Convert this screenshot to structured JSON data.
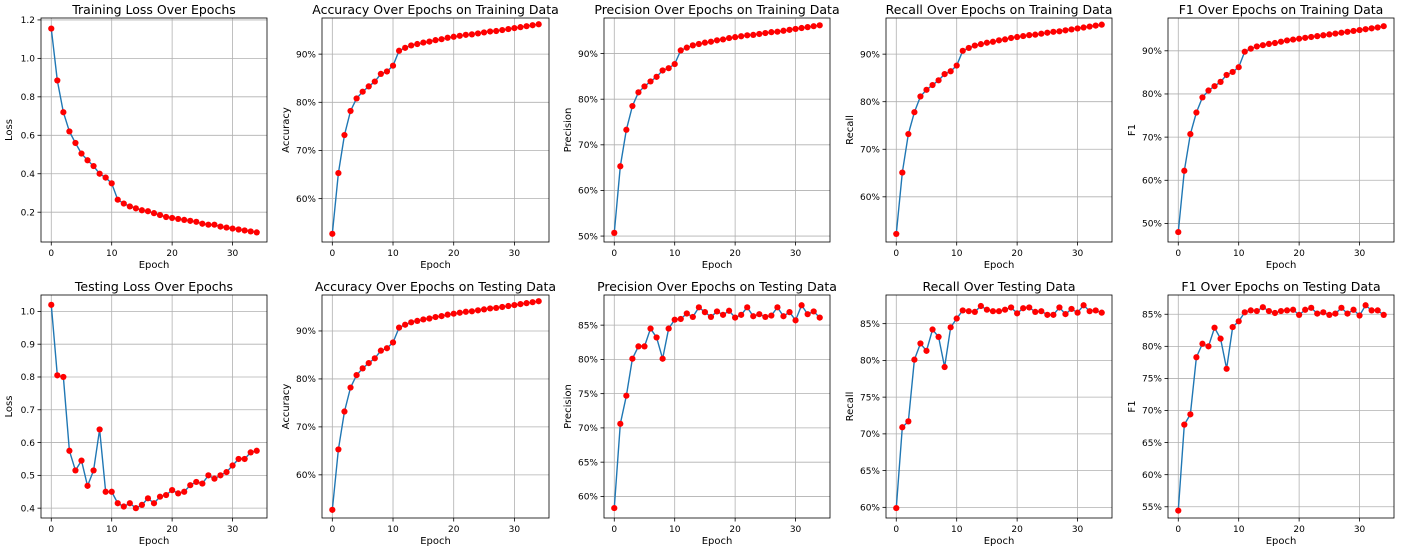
{
  "figure": {
    "background": "#ffffff"
  },
  "style": {
    "line_color": "#1f77b4",
    "marker_color": "#ff0000",
    "grid_color": "#b0b0b0",
    "grid": true
  },
  "chart_data": [
    {
      "type": "line",
      "title": "Training Loss Over Epochs",
      "xlabel": "Epoch",
      "ylabel": "Loss",
      "xlim": [
        -1.7,
        35.7
      ],
      "ylim": [
        0.045,
        1.21
      ],
      "xticks": [
        0,
        10,
        20,
        30
      ],
      "xtick_labels": [
        "0",
        "10",
        "20",
        "30"
      ],
      "yticks": [
        0.2,
        0.4,
        0.6,
        0.8,
        1.0,
        1.2
      ],
      "ytick_labels": [
        "0.2",
        "0.4",
        "0.6",
        "0.8",
        "1.0",
        "1.2"
      ],
      "x": [
        0,
        1,
        2,
        3,
        4,
        5,
        6,
        7,
        8,
        9,
        10,
        11,
        12,
        13,
        14,
        15,
        16,
        17,
        18,
        19,
        20,
        21,
        22,
        23,
        24,
        25,
        26,
        27,
        28,
        29,
        30,
        31,
        32,
        33,
        34
      ],
      "y": [
        1.155,
        0.885,
        0.72,
        0.62,
        0.56,
        0.505,
        0.47,
        0.44,
        0.4,
        0.38,
        0.35,
        0.265,
        0.245,
        0.23,
        0.22,
        0.21,
        0.205,
        0.195,
        0.185,
        0.175,
        0.17,
        0.165,
        0.16,
        0.155,
        0.15,
        0.14,
        0.135,
        0.135,
        0.125,
        0.12,
        0.115,
        0.11,
        0.105,
        0.1,
        0.095
      ]
    },
    {
      "type": "line",
      "title": "Accuracy Over Epochs on Training Data",
      "xlabel": "Epoch",
      "ylabel": "Accuracy",
      "xlim": [
        -1.7,
        35.7
      ],
      "ylim": [
        0.51,
        0.975
      ],
      "xticks": [
        0,
        10,
        20,
        30
      ],
      "xtick_labels": [
        "0",
        "10",
        "20",
        "30"
      ],
      "yticks": [
        0.6,
        0.7,
        0.8,
        0.9
      ],
      "ytick_labels": [
        "60%",
        "70%",
        "80%",
        "90%"
      ],
      "x": [
        0,
        1,
        2,
        3,
        4,
        5,
        6,
        7,
        8,
        9,
        10,
        11,
        12,
        13,
        14,
        15,
        16,
        17,
        18,
        19,
        20,
        21,
        22,
        23,
        24,
        25,
        26,
        27,
        28,
        29,
        30,
        31,
        32,
        33,
        34
      ],
      "y": [
        0.527,
        0.653,
        0.732,
        0.782,
        0.808,
        0.822,
        0.833,
        0.843,
        0.859,
        0.864,
        0.876,
        0.907,
        0.913,
        0.918,
        0.921,
        0.924,
        0.926,
        0.929,
        0.931,
        0.934,
        0.936,
        0.938,
        0.94,
        0.941,
        0.943,
        0.945,
        0.947,
        0.948,
        0.95,
        0.952,
        0.954,
        0.956,
        0.958,
        0.96,
        0.962
      ]
    },
    {
      "type": "line",
      "title": "Precision Over Epochs on Training Data",
      "xlabel": "Epoch",
      "ylabel": "Precision",
      "xlim": [
        -1.7,
        35.7
      ],
      "ylim": [
        0.487,
        0.978
      ],
      "xticks": [
        0,
        10,
        20,
        30
      ],
      "xtick_labels": [
        "0",
        "10",
        "20",
        "30"
      ],
      "yticks": [
        0.5,
        0.6,
        0.7,
        0.8,
        0.9
      ],
      "ytick_labels": [
        "50%",
        "60%",
        "70%",
        "80%",
        "90%"
      ],
      "x": [
        0,
        1,
        2,
        3,
        4,
        5,
        6,
        7,
        8,
        9,
        10,
        11,
        12,
        13,
        14,
        15,
        16,
        17,
        18,
        19,
        20,
        21,
        22,
        23,
        24,
        25,
        26,
        27,
        28,
        29,
        30,
        31,
        32,
        33,
        34
      ],
      "y": [
        0.507,
        0.653,
        0.733,
        0.785,
        0.815,
        0.828,
        0.839,
        0.849,
        0.863,
        0.868,
        0.877,
        0.907,
        0.913,
        0.918,
        0.921,
        0.924,
        0.926,
        0.929,
        0.931,
        0.934,
        0.936,
        0.938,
        0.94,
        0.941,
        0.943,
        0.945,
        0.947,
        0.948,
        0.95,
        0.952,
        0.954,
        0.956,
        0.958,
        0.96,
        0.962
      ]
    },
    {
      "type": "line",
      "title": "Recall Over Epochs on Training Data",
      "xlabel": "Epoch",
      "ylabel": "Recall",
      "xlim": [
        -1.7,
        35.7
      ],
      "ylim": [
        0.505,
        0.976
      ],
      "xticks": [
        0,
        10,
        20,
        30
      ],
      "xtick_labels": [
        "0",
        "10",
        "20",
        "30"
      ],
      "yticks": [
        0.6,
        0.7,
        0.8,
        0.9
      ],
      "ytick_labels": [
        "60%",
        "70%",
        "80%",
        "90%"
      ],
      "x": [
        0,
        1,
        2,
        3,
        4,
        5,
        6,
        7,
        8,
        9,
        10,
        11,
        12,
        13,
        14,
        15,
        16,
        17,
        18,
        19,
        20,
        21,
        22,
        23,
        24,
        25,
        26,
        27,
        28,
        29,
        30,
        31,
        32,
        33,
        34
      ],
      "y": [
        0.522,
        0.651,
        0.732,
        0.778,
        0.811,
        0.825,
        0.835,
        0.845,
        0.858,
        0.864,
        0.876,
        0.907,
        0.913,
        0.918,
        0.921,
        0.924,
        0.926,
        0.929,
        0.931,
        0.934,
        0.936,
        0.938,
        0.94,
        0.941,
        0.943,
        0.945,
        0.947,
        0.948,
        0.95,
        0.952,
        0.954,
        0.956,
        0.958,
        0.96,
        0.962
      ]
    },
    {
      "type": "line",
      "title": "F1 Over Epochs on Training Data",
      "xlabel": "Epoch",
      "ylabel": "F1",
      "xlim": [
        -1.7,
        35.7
      ],
      "ylim": [
        0.457,
        0.976
      ],
      "xticks": [
        0,
        10,
        20,
        30
      ],
      "xtick_labels": [
        "0",
        "10",
        "20",
        "30"
      ],
      "yticks": [
        0.5,
        0.6,
        0.7,
        0.8,
        0.9
      ],
      "ytick_labels": [
        "50%",
        "60%",
        "70%",
        "80%",
        "90%"
      ],
      "x": [
        0,
        1,
        2,
        3,
        4,
        5,
        6,
        7,
        8,
        9,
        10,
        11,
        12,
        13,
        14,
        15,
        16,
        17,
        18,
        19,
        20,
        21,
        22,
        23,
        24,
        25,
        26,
        27,
        28,
        29,
        30,
        31,
        32,
        33,
        34
      ],
      "y": [
        0.48,
        0.622,
        0.707,
        0.757,
        0.792,
        0.808,
        0.818,
        0.828,
        0.844,
        0.851,
        0.862,
        0.898,
        0.905,
        0.91,
        0.913,
        0.916,
        0.918,
        0.921,
        0.924,
        0.926,
        0.928,
        0.93,
        0.932,
        0.934,
        0.936,
        0.938,
        0.94,
        0.942,
        0.944,
        0.946,
        0.948,
        0.95,
        0.952,
        0.954,
        0.957
      ]
    },
    {
      "type": "line",
      "title": "Testing Loss Over Epochs",
      "xlabel": "Epoch",
      "ylabel": "Loss",
      "xlim": [
        -1.7,
        35.7
      ],
      "ylim": [
        0.37,
        1.05
      ],
      "xticks": [
        0,
        10,
        20,
        30
      ],
      "xtick_labels": [
        "0",
        "10",
        "20",
        "30"
      ],
      "yticks": [
        0.4,
        0.5,
        0.6,
        0.7,
        0.8,
        0.9,
        1.0
      ],
      "ytick_labels": [
        "0.4",
        "0.5",
        "0.6",
        "0.7",
        "0.8",
        "0.9",
        "1.0"
      ],
      "x": [
        0,
        1,
        2,
        3,
        4,
        5,
        6,
        7,
        8,
        9,
        10,
        11,
        12,
        13,
        14,
        15,
        16,
        17,
        18,
        19,
        20,
        21,
        22,
        23,
        24,
        25,
        26,
        27,
        28,
        29,
        30,
        31,
        32,
        33,
        34
      ],
      "y": [
        1.02,
        0.805,
        0.8,
        0.575,
        0.515,
        0.545,
        0.468,
        0.515,
        0.64,
        0.45,
        0.45,
        0.415,
        0.405,
        0.415,
        0.4,
        0.41,
        0.43,
        0.415,
        0.435,
        0.44,
        0.455,
        0.445,
        0.45,
        0.47,
        0.48,
        0.475,
        0.5,
        0.49,
        0.5,
        0.51,
        0.53,
        0.55,
        0.55,
        0.57,
        0.575
      ]
    },
    {
      "type": "line",
      "title": "Accuracy Over Epochs on Testing Data",
      "xlabel": "Epoch",
      "ylabel": "Accuracy",
      "xlim": [
        -1.7,
        35.7
      ],
      "ylim": [
        0.51,
        0.975
      ],
      "xticks": [
        0,
        10,
        20,
        30
      ],
      "xtick_labels": [
        "0",
        "10",
        "20",
        "30"
      ],
      "yticks": [
        0.6,
        0.7,
        0.8,
        0.9
      ],
      "ytick_labels": [
        "60%",
        "70%",
        "80%",
        "90%"
      ],
      "x": [
        0,
        1,
        2,
        3,
        4,
        5,
        6,
        7,
        8,
        9,
        10,
        11,
        12,
        13,
        14,
        15,
        16,
        17,
        18,
        19,
        20,
        21,
        22,
        23,
        24,
        25,
        26,
        27,
        28,
        29,
        30,
        31,
        32,
        33,
        34
      ],
      "y": [
        0.527,
        0.653,
        0.732,
        0.782,
        0.808,
        0.822,
        0.833,
        0.843,
        0.859,
        0.864,
        0.876,
        0.907,
        0.913,
        0.918,
        0.921,
        0.924,
        0.926,
        0.929,
        0.931,
        0.934,
        0.936,
        0.938,
        0.94,
        0.941,
        0.943,
        0.945,
        0.947,
        0.948,
        0.95,
        0.952,
        0.954,
        0.956,
        0.958,
        0.96,
        0.962
      ]
    },
    {
      "type": "line",
      "title": "Precision Over Epochs on Testing Data",
      "xlabel": "Epoch",
      "ylabel": "Precision",
      "xlim": [
        -1.7,
        35.7
      ],
      "ylim": [
        0.5685,
        0.894
      ],
      "xticks": [
        0,
        10,
        20,
        30
      ],
      "xtick_labels": [
        "0",
        "10",
        "20",
        "30"
      ],
      "yticks": [
        0.6,
        0.65,
        0.7,
        0.75,
        0.8,
        0.85
      ],
      "ytick_labels": [
        "60%",
        "65%",
        "70%",
        "75%",
        "80%",
        "85%"
      ],
      "x": [
        0,
        1,
        2,
        3,
        4,
        5,
        6,
        7,
        8,
        9,
        10,
        11,
        12,
        13,
        14,
        15,
        16,
        17,
        18,
        19,
        20,
        21,
        22,
        23,
        24,
        25,
        26,
        27,
        28,
        29,
        30,
        31,
        32,
        33,
        34
      ],
      "y": [
        0.583,
        0.706,
        0.747,
        0.801,
        0.819,
        0.819,
        0.845,
        0.832,
        0.801,
        0.845,
        0.858,
        0.859,
        0.867,
        0.862,
        0.876,
        0.869,
        0.862,
        0.87,
        0.865,
        0.871,
        0.861,
        0.865,
        0.876,
        0.863,
        0.866,
        0.862,
        0.864,
        0.876,
        0.863,
        0.869,
        0.857,
        0.879,
        0.866,
        0.87,
        0.861
      ]
    },
    {
      "type": "line",
      "title": "Recall Over Testing Data",
      "xlabel": "Epoch",
      "ylabel": "Recall",
      "xlim": [
        -1.7,
        35.7
      ],
      "ylim": [
        0.5855,
        0.889
      ],
      "xticks": [
        0,
        10,
        20,
        30
      ],
      "xtick_labels": [
        "0",
        "10",
        "20",
        "30"
      ],
      "yticks": [
        0.6,
        0.65,
        0.7,
        0.75,
        0.8,
        0.85
      ],
      "ytick_labels": [
        "60%",
        "65%",
        "70%",
        "75%",
        "80%",
        "85%"
      ],
      "x": [
        0,
        1,
        2,
        3,
        4,
        5,
        6,
        7,
        8,
        9,
        10,
        11,
        12,
        13,
        14,
        15,
        16,
        17,
        18,
        19,
        20,
        21,
        22,
        23,
        24,
        25,
        26,
        27,
        28,
        29,
        30,
        31,
        32,
        33,
        34
      ],
      "y": [
        0.599,
        0.709,
        0.717,
        0.801,
        0.823,
        0.813,
        0.842,
        0.832,
        0.791,
        0.845,
        0.857,
        0.868,
        0.867,
        0.866,
        0.874,
        0.869,
        0.867,
        0.867,
        0.869,
        0.872,
        0.864,
        0.871,
        0.872,
        0.866,
        0.867,
        0.862,
        0.862,
        0.872,
        0.863,
        0.87,
        0.865,
        0.875,
        0.867,
        0.868,
        0.865
      ]
    },
    {
      "type": "line",
      "title": "F1 Over Epochs on Testing Data",
      "xlabel": "Epoch",
      "ylabel": "F1",
      "xlim": [
        -1.7,
        35.7
      ],
      "ylim": [
        0.5325,
        0.88
      ],
      "xticks": [
        0,
        10,
        20,
        30
      ],
      "xtick_labels": [
        "0",
        "10",
        "20",
        "30"
      ],
      "yticks": [
        0.55,
        0.6,
        0.65,
        0.7,
        0.75,
        0.8,
        0.85
      ],
      "ytick_labels": [
        "55%",
        "60%",
        "65%",
        "70%",
        "75%",
        "80%",
        "85%"
      ],
      "x": [
        0,
        1,
        2,
        3,
        4,
        5,
        6,
        7,
        8,
        9,
        10,
        11,
        12,
        13,
        14,
        15,
        16,
        17,
        18,
        19,
        20,
        21,
        22,
        23,
        24,
        25,
        26,
        27,
        28,
        29,
        30,
        31,
        32,
        33,
        34
      ],
      "y": [
        0.544,
        0.678,
        0.694,
        0.783,
        0.804,
        0.8,
        0.829,
        0.812,
        0.765,
        0.83,
        0.839,
        0.853,
        0.856,
        0.855,
        0.861,
        0.855,
        0.852,
        0.855,
        0.856,
        0.857,
        0.849,
        0.857,
        0.86,
        0.851,
        0.853,
        0.849,
        0.851,
        0.86,
        0.851,
        0.857,
        0.848,
        0.864,
        0.856,
        0.856,
        0.849
      ]
    }
  ]
}
